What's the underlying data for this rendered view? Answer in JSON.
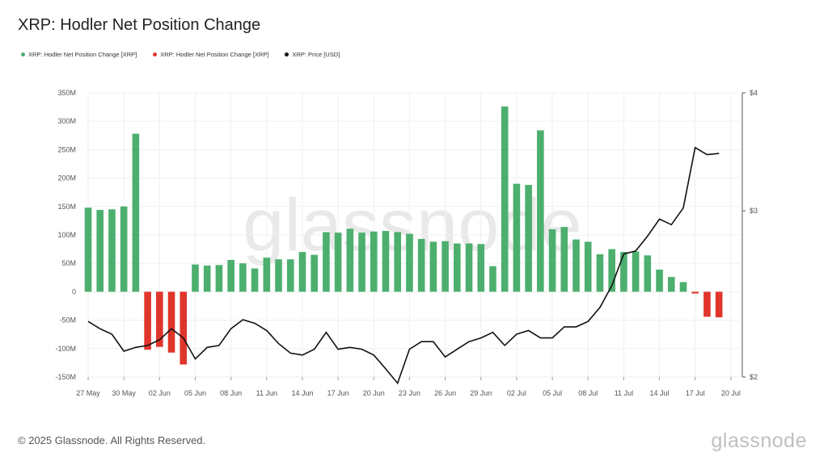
{
  "title": "XRP: Hodler Net Position Change",
  "copyright": "© 2025 Glassnode. All Rights Reserved.",
  "brand": "glassnode",
  "watermark": "glassnode",
  "colors": {
    "positive": "#4caf6e",
    "negative": "#e0352b",
    "price": "#111111",
    "grid": "#efefef"
  },
  "legend": [
    {
      "label": "XRP: Hodler Net Position Change [XRP]",
      "color": "#4caf6e"
    },
    {
      "label": "XRP: Hodler Net Position Change [XRP]",
      "color": "#e0352b"
    },
    {
      "label": "XRP: Price [USD]",
      "color": "#111111"
    }
  ],
  "chart_data": {
    "type": "bar",
    "title": "XRP: Hodler Net Position Change",
    "categories": [
      "27 May",
      "28 May",
      "29 May",
      "30 May",
      "31 May",
      "01 Jun",
      "02 Jun",
      "03 Jun",
      "04 Jun",
      "05 Jun",
      "06 Jun",
      "07 Jun",
      "08 Jun",
      "09 Jun",
      "10 Jun",
      "11 Jun",
      "12 Jun",
      "13 Jun",
      "14 Jun",
      "15 Jun",
      "16 Jun",
      "17 Jun",
      "18 Jun",
      "19 Jun",
      "20 Jun",
      "21 Jun",
      "22 Jun",
      "23 Jun",
      "24 Jun",
      "25 Jun",
      "26 Jun",
      "27 Jun",
      "28 Jun",
      "29 Jun",
      "30 Jun",
      "01 Jul",
      "02 Jul",
      "03 Jul",
      "04 Jul",
      "05 Jul",
      "06 Jul",
      "07 Jul",
      "08 Jul",
      "09 Jul",
      "10 Jul",
      "11 Jul",
      "12 Jul",
      "13 Jul",
      "14 Jul",
      "15 Jul",
      "16 Jul",
      "17 Jul",
      "18 Jul",
      "19 Jul"
    ],
    "x_ticks": [
      "27 May",
      "30 May",
      "02 Jun",
      "05 Jun",
      "08 Jun",
      "11 Jun",
      "14 Jun",
      "17 Jun",
      "20 Jun",
      "23 Jun",
      "26 Jun",
      "29 Jun",
      "02 Jul",
      "05 Jul",
      "08 Jul",
      "11 Jul",
      "14 Jul",
      "17 Jul",
      "20 Jul"
    ],
    "series": [
      {
        "name": "XRP: Hodler Net Position Change [XRP]",
        "axis": "left",
        "values": [
          148000000,
          144000000,
          145000000,
          150000000,
          278000000,
          -102000000,
          -97000000,
          -107000000,
          -128000000,
          48000000,
          46000000,
          47000000,
          56000000,
          50000000,
          41000000,
          60000000,
          57000000,
          57000000,
          70000000,
          65000000,
          105000000,
          104000000,
          111000000,
          104000000,
          106000000,
          107000000,
          105000000,
          102000000,
          93000000,
          88000000,
          89000000,
          85000000,
          85000000,
          84000000,
          45000000,
          326000000,
          190000000,
          188000000,
          284000000,
          110000000,
          114000000,
          92000000,
          88000000,
          66000000,
          75000000,
          70000000,
          71000000,
          64000000,
          39000000,
          26000000,
          17000000,
          -3000000,
          -44000000,
          -45000000
        ]
      },
      {
        "name": "XRP: Price [USD]",
        "axis": "right",
        "values": [
          2.29,
          2.25,
          2.22,
          2.13,
          2.15,
          2.16,
          2.19,
          2.25,
          2.2,
          2.09,
          2.15,
          2.16,
          2.25,
          2.3,
          2.28,
          2.24,
          2.17,
          2.12,
          2.11,
          2.14,
          2.23,
          2.14,
          2.15,
          2.14,
          2.11,
          2.04,
          1.97,
          2.14,
          2.18,
          2.18,
          2.1,
          2.14,
          2.18,
          2.2,
          2.23,
          2.16,
          2.22,
          2.24,
          2.2,
          2.2,
          2.26,
          2.26,
          2.29,
          2.37,
          2.5,
          2.7,
          2.72,
          2.82,
          2.94,
          2.9,
          3.02,
          3.5,
          3.44,
          3.45
        ]
      }
    ],
    "y_left_ticks": [
      "350M",
      "300M",
      "250M",
      "200M",
      "150M",
      "100M",
      "50M",
      "0",
      "-50M",
      "-100M",
      "-150M"
    ],
    "y_left_range": [
      -150000000,
      350000000
    ],
    "y_right_ticks": [
      "$4",
      "$3",
      "$2"
    ],
    "y_right_scale": "log",
    "y_right_range": [
      2,
      4
    ],
    "grid": true,
    "legend_position": "top-left"
  }
}
